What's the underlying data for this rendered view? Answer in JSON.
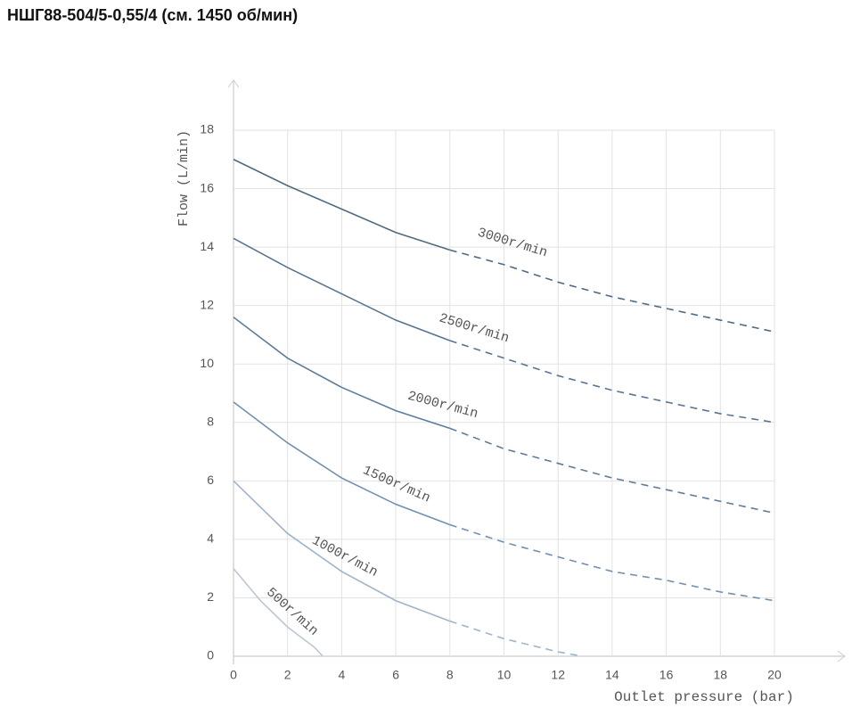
{
  "chart_data": {
    "type": "line",
    "title": "НШГ88-504/5-0,55/4 (см. 1450 об/мин)",
    "x_label": "Outlet pressure (bar)",
    "y_label": "Flow (L/min)",
    "xlim": [
      0,
      20
    ],
    "ylim": [
      0,
      18
    ],
    "xticks": [
      0,
      2,
      4,
      6,
      8,
      10,
      12,
      14,
      16,
      18,
      20
    ],
    "yticks": [
      0,
      2,
      4,
      6,
      8,
      10,
      12,
      14,
      16,
      18
    ],
    "grid": true,
    "dashed_from": 8,
    "series": [
      {
        "name": "3000r/min",
        "color": "#4f6b82",
        "x": [
          0,
          2,
          4,
          6,
          8,
          10,
          12,
          14,
          16,
          18,
          20
        ],
        "values": [
          17.0,
          16.1,
          15.3,
          14.5,
          13.9,
          13.4,
          12.8,
          12.3,
          11.9,
          11.5,
          11.1
        ]
      },
      {
        "name": "2500r/min",
        "color": "#587490",
        "x": [
          0,
          2,
          4,
          6,
          8,
          10,
          12,
          14,
          16,
          18,
          20
        ],
        "values": [
          14.3,
          13.3,
          12.4,
          11.5,
          10.8,
          10.2,
          9.6,
          9.1,
          8.7,
          8.3,
          8.0
        ]
      },
      {
        "name": "2000r/min",
        "color": "#5f7c98",
        "x": [
          0,
          2,
          4,
          6,
          8,
          10,
          12,
          14,
          16,
          18,
          20
        ],
        "values": [
          11.6,
          10.2,
          9.2,
          8.4,
          7.8,
          7.1,
          6.6,
          6.1,
          5.7,
          5.3,
          4.9
        ]
      },
      {
        "name": "1500r/min",
        "color": "#7290ad",
        "x": [
          0,
          2,
          4,
          6,
          8,
          10,
          12,
          14,
          16,
          18,
          20
        ],
        "values": [
          8.7,
          7.3,
          6.1,
          5.2,
          4.5,
          3.9,
          3.4,
          2.9,
          2.6,
          2.2,
          1.9
        ]
      },
      {
        "name": "1000r/min",
        "color": "#9fb4c9",
        "x": [
          0,
          2,
          4,
          6,
          8,
          10,
          12,
          12.9
        ],
        "values": [
          6.0,
          4.2,
          2.9,
          1.9,
          1.2,
          0.6,
          0.15,
          0
        ]
      },
      {
        "name": "500r/min",
        "color": "#b9c7d5",
        "x": [
          0,
          1,
          2,
          3,
          3.3
        ],
        "values": [
          3.0,
          1.9,
          1.0,
          0.3,
          0
        ]
      }
    ]
  }
}
